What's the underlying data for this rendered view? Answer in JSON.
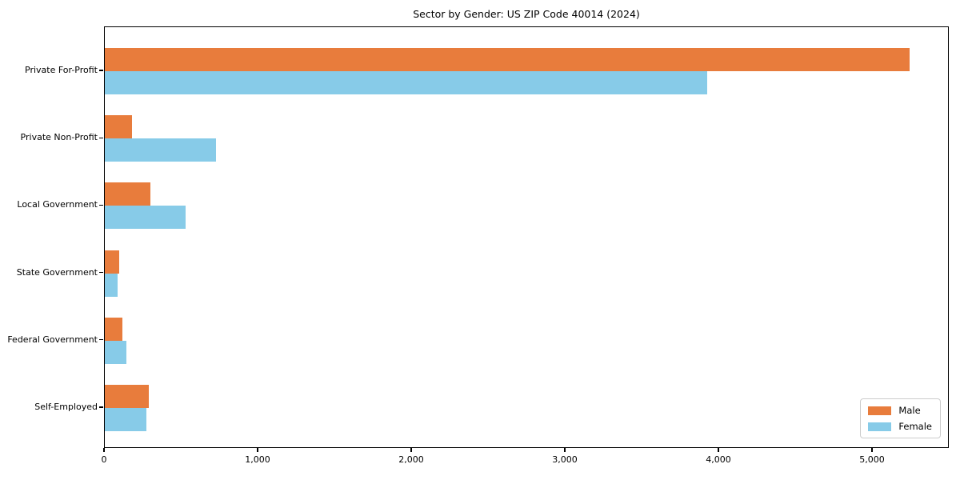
{
  "chart_data": {
    "type": "bar",
    "orientation": "horizontal",
    "title": "Sector by Gender: US ZIP Code 40014 (2024)",
    "categories": [
      "Private For-Profit",
      "Private Non-Profit",
      "Local Government",
      "State Government",
      "Federal Government",
      "Self-Employed"
    ],
    "series": [
      {
        "name": "Male",
        "color": "#E87C3C",
        "values": [
          5250,
          180,
          300,
          95,
          115,
          285
        ]
      },
      {
        "name": "Female",
        "color": "#87CBE8",
        "values": [
          3930,
          725,
          525,
          85,
          140,
          270
        ]
      }
    ],
    "xlabel": "",
    "ylabel": "",
    "xlim": [
      0,
      5500
    ],
    "x_ticks": [
      0,
      1000,
      2000,
      3000,
      4000,
      5000
    ],
    "x_tick_labels": [
      "0",
      "1,000",
      "2,000",
      "3,000",
      "4,000",
      "5,000"
    ],
    "grid": false,
    "legend_position": "lower right",
    "legend_entries": [
      "Male",
      "Female"
    ]
  }
}
